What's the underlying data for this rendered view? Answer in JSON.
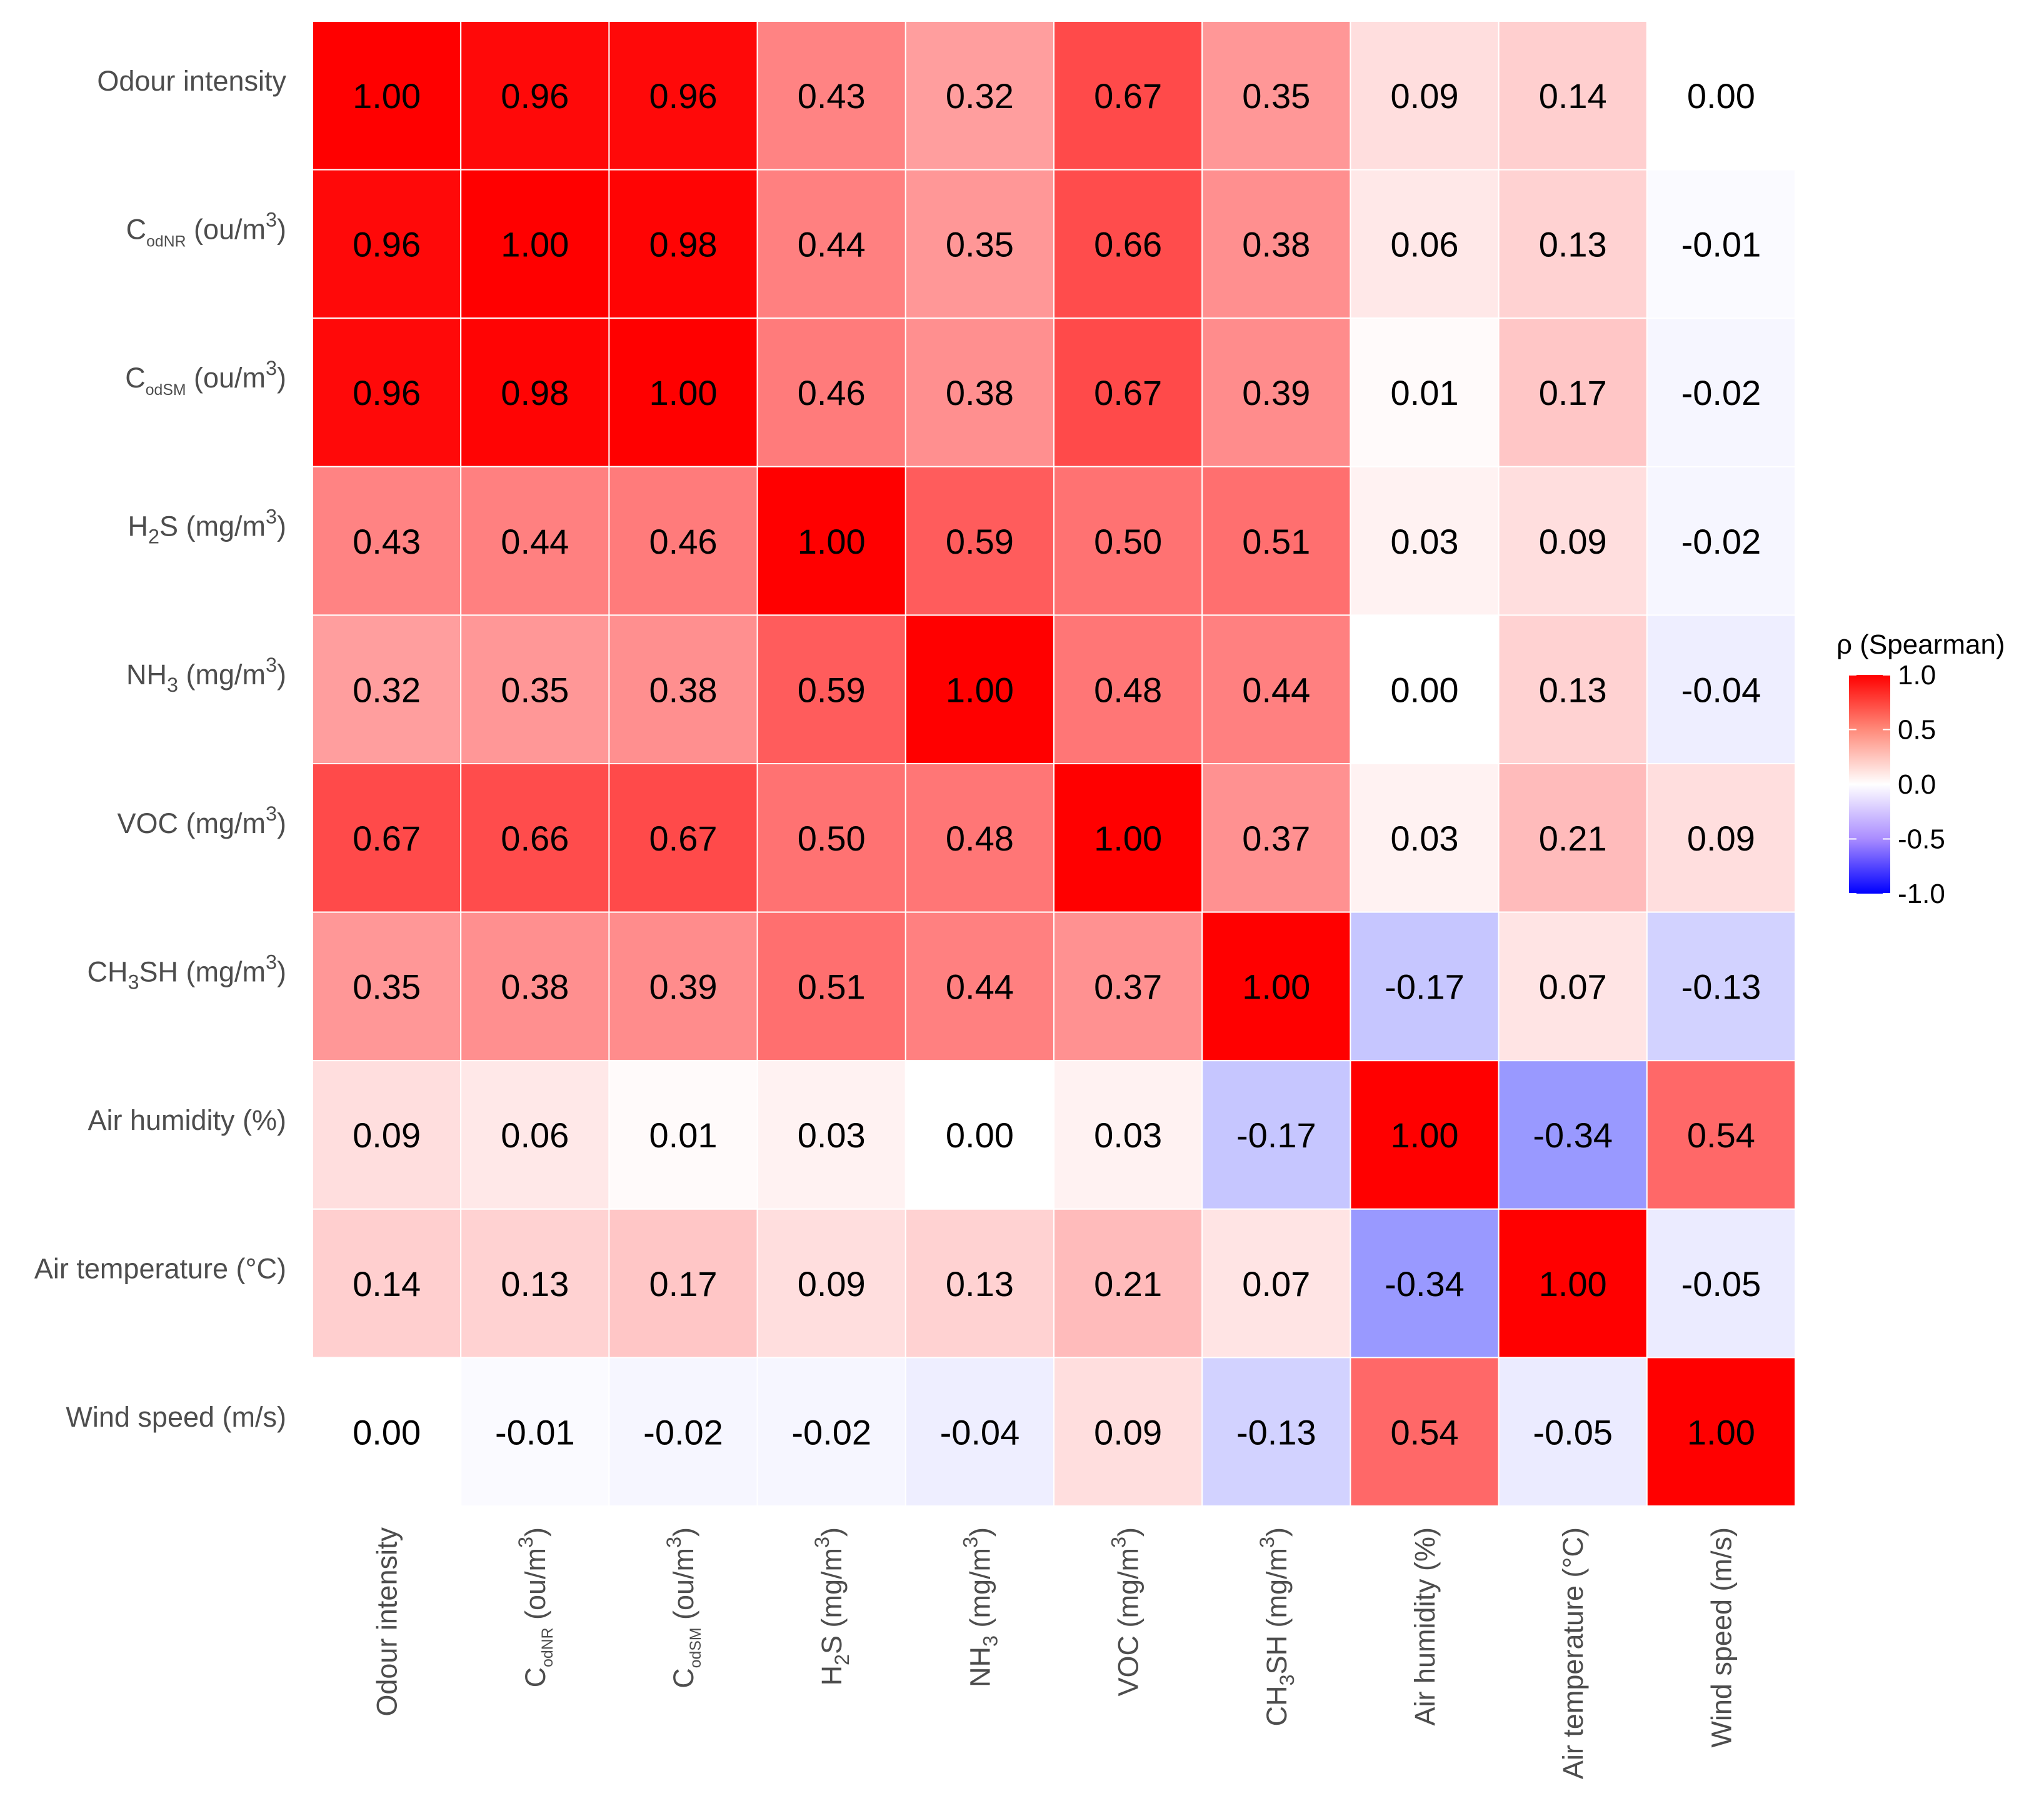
{
  "chart_data": {
    "type": "heatmap",
    "title": "",
    "xlabel": "",
    "ylabel": "",
    "variables": [
      {
        "main": "Odour intensity",
        "sub": "",
        "unit_pre": "",
        "unit_sup": "",
        "unit_post": ""
      },
      {
        "main": "C",
        "sub": "odNR",
        "unit_pre": " (ou/m",
        "unit_sup": "3",
        "unit_post": ")"
      },
      {
        "main": "C",
        "sub": "odSM",
        "unit_pre": " (ou/m",
        "unit_sup": "3",
        "unit_post": ")"
      },
      {
        "main": "H",
        "sub": "2",
        "after_sub": "S",
        "unit_pre": " (mg/m",
        "unit_sup": "3",
        "unit_post": ")"
      },
      {
        "main": "NH",
        "sub": "3",
        "after_sub": "",
        "unit_pre": " (mg/m",
        "unit_sup": "3",
        "unit_post": ")"
      },
      {
        "main": "VOC",
        "sub": "",
        "unit_pre": " (mg/m",
        "unit_sup": "3",
        "unit_post": ")"
      },
      {
        "main": "CH",
        "sub": "3",
        "after_sub": "SH",
        "unit_pre": " (mg/m",
        "unit_sup": "3",
        "unit_post": ")"
      },
      {
        "main": "Air humidity (%)",
        "sub": "",
        "unit_pre": "",
        "unit_sup": "",
        "unit_post": ""
      },
      {
        "main": "Air temperature (°C)",
        "sub": "",
        "unit_pre": "",
        "unit_sup": "",
        "unit_post": ""
      },
      {
        "main": "Wind speed (m/s)",
        "sub": "",
        "unit_pre": "",
        "unit_sup": "",
        "unit_post": ""
      }
    ],
    "matrix": [
      [
        1.0,
        0.96,
        0.96,
        0.43,
        0.32,
        0.67,
        0.35,
        0.09,
        0.14,
        0.0
      ],
      [
        0.96,
        1.0,
        0.98,
        0.44,
        0.35,
        0.66,
        0.38,
        0.06,
        0.13,
        -0.01
      ],
      [
        0.96,
        0.98,
        1.0,
        0.46,
        0.38,
        0.67,
        0.39,
        0.01,
        0.17,
        -0.02
      ],
      [
        0.43,
        0.44,
        0.46,
        1.0,
        0.59,
        0.5,
        0.51,
        0.03,
        0.09,
        -0.02
      ],
      [
        0.32,
        0.35,
        0.38,
        0.59,
        1.0,
        0.48,
        0.44,
        0.0,
        0.13,
        -0.04
      ],
      [
        0.67,
        0.66,
        0.67,
        0.5,
        0.48,
        1.0,
        0.37,
        0.03,
        0.21,
        0.09
      ],
      [
        0.35,
        0.38,
        0.39,
        0.51,
        0.44,
        0.37,
        1.0,
        -0.17,
        0.07,
        -0.13
      ],
      [
        0.09,
        0.06,
        0.01,
        0.03,
        0.0,
        0.03,
        -0.17,
        1.0,
        -0.34,
        0.54
      ],
      [
        0.14,
        0.13,
        0.17,
        0.09,
        0.13,
        0.21,
        0.07,
        -0.34,
        1.0,
        -0.05
      ],
      [
        0.0,
        -0.01,
        -0.02,
        -0.02,
        -0.04,
        0.09,
        -0.13,
        0.54,
        -0.05,
        1.0
      ]
    ],
    "legend": {
      "title": "ρ (Spearman)",
      "placement": "right",
      "ticks": [
        1.0,
        0.5,
        0.0,
        -0.5,
        -1.0
      ],
      "tick_labels": [
        "1.0",
        "0.5",
        "0.0",
        "-0.5",
        "-1.0"
      ],
      "range": [
        -1.0,
        1.0
      ]
    },
    "colors": {
      "high": "#ff0000",
      "mid": "#ffffff",
      "low": "#0000ff",
      "text": "#000000",
      "axis_text": "#4d4d4d",
      "grid_line": "#ffffff"
    }
  }
}
